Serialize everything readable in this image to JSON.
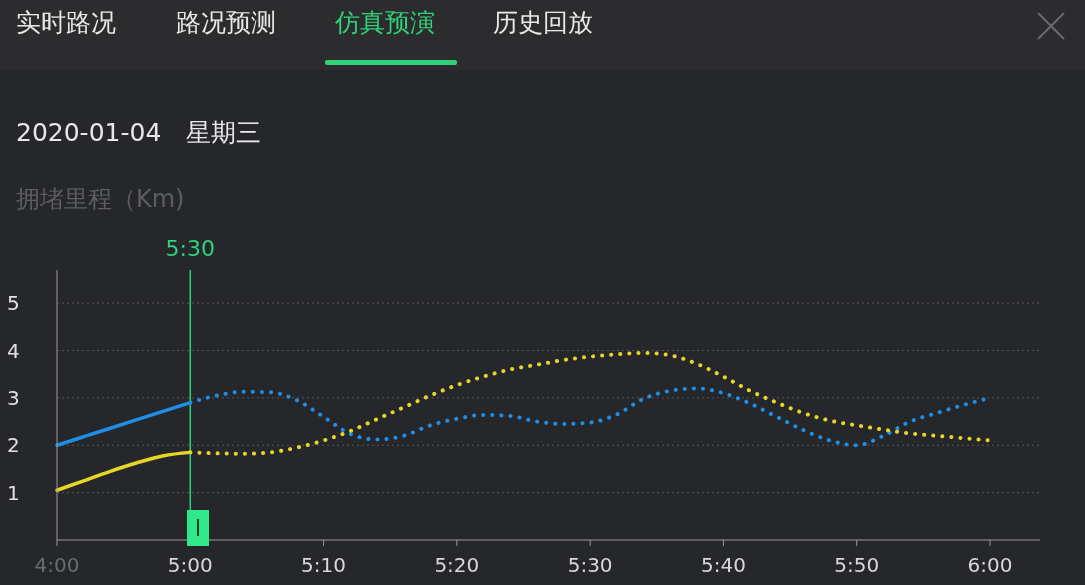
{
  "chart_data": {
    "type": "line",
    "title": "2020-01-04　星期三",
    "ylabel": "拥堵里程（Km)",
    "annotations": [
      "实时路况",
      "路况预测",
      "仿真预演",
      "历史回放"
    ],
    "categories": [
      "4:00",
      null,
      null,
      null,
      null,
      "5:00",
      null,
      null,
      null,
      null,
      "5:10",
      null,
      null,
      null,
      null,
      "5:20",
      null,
      null,
      null,
      null,
      "5:30",
      null,
      null,
      null,
      null,
      "5:40",
      null,
      null,
      null,
      null,
      "5:50",
      null,
      null,
      null,
      null,
      "6:00"
    ],
    "ylim": [
      0,
      5.7
    ],
    "yticks": [
      1,
      2,
      3,
      4,
      5
    ],
    "grid": "y",
    "marker": "none",
    "ref_lines": [
      {
        "axis": "x",
        "value": "5:00",
        "label": "5:30",
        "color": "#2fd27a"
      }
    ],
    "series": [
      {
        "color": "#1e8fe6",
        "line_style": "solid",
        "values": [
          2.0,
          2.18,
          2.36,
          2.54,
          2.72,
          2.9,
          null,
          null,
          null,
          null,
          null,
          null,
          null,
          null,
          null,
          null,
          null,
          null,
          null,
          null,
          null,
          null,
          null,
          null,
          null,
          null,
          null,
          null,
          null,
          null,
          null,
          null,
          null,
          null,
          null,
          null
        ]
      },
      {
        "color": "#1e8fe6",
        "line_style": "dotted",
        "values": [
          null,
          null,
          null,
          null,
          null,
          2.9,
          3.05,
          3.13,
          3.12,
          2.95,
          2.6,
          2.24,
          2.12,
          2.2,
          2.42,
          2.56,
          2.64,
          2.62,
          2.5,
          2.45,
          2.48,
          2.65,
          2.98,
          3.15,
          3.2,
          3.1,
          2.88,
          2.6,
          2.32,
          2.1,
          2.0,
          2.2,
          2.5,
          2.68,
          2.85,
          3.0
        ]
      },
      {
        "color": "#e6d625",
        "line_style": "solid",
        "values": [
          1.05,
          1.25,
          1.45,
          1.63,
          1.78,
          1.85,
          null,
          null,
          null,
          null,
          null,
          null,
          null,
          null,
          null,
          null,
          null,
          null,
          null,
          null,
          null,
          null,
          null,
          null,
          null,
          null,
          null,
          null,
          null,
          null,
          null,
          null,
          null,
          null,
          null,
          null
        ]
      },
      {
        "color": "#e6d625",
        "line_style": "dotted",
        "values": [
          null,
          null,
          null,
          null,
          null,
          1.85,
          1.83,
          1.82,
          1.85,
          1.95,
          2.1,
          2.3,
          2.55,
          2.8,
          3.05,
          3.27,
          3.45,
          3.6,
          3.7,
          3.8,
          3.87,
          3.92,
          3.95,
          3.9,
          3.72,
          3.45,
          3.15,
          2.9,
          2.68,
          2.52,
          2.42,
          2.33,
          2.25,
          2.2,
          2.15,
          2.1
        ]
      }
    ]
  }
}
